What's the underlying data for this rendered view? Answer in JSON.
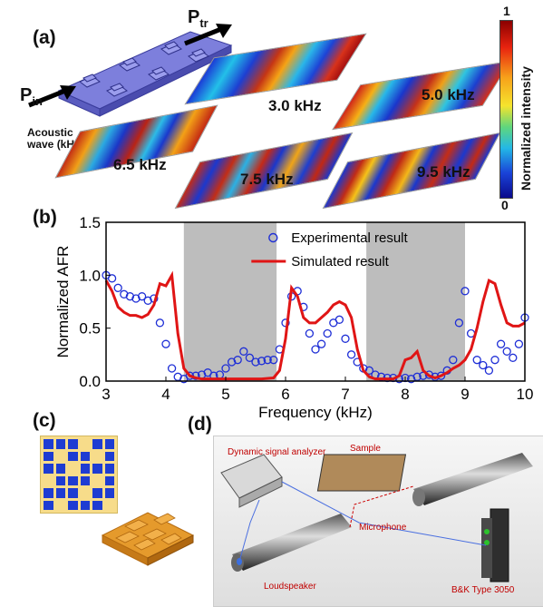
{
  "panels": {
    "a": "(a)",
    "b": "(b)",
    "c": "(c)",
    "d": "(d)"
  },
  "panel_a": {
    "p_in": {
      "main": "P",
      "sub": "in"
    },
    "p_tr": {
      "main": "P",
      "sub": "tr"
    },
    "wave_label_line1": "Acoustic",
    "wave_label_line2": "wave (kHz)",
    "freqs": [
      "3.0 kHz",
      "5.0 kHz",
      "6.5 kHz",
      "7.5 kHz",
      "9.5 kHz"
    ],
    "colorbar": {
      "max": "1",
      "min": "0",
      "label": "Normalized intensity"
    }
  },
  "chart_data": {
    "type": "line",
    "xlabel": "Frequency (kHz)",
    "ylabel": "Normalized AFR",
    "xlim": [
      3,
      10
    ],
    "ylim": [
      0,
      1.5
    ],
    "xticks": [
      "3",
      "4",
      "5",
      "6",
      "7",
      "8",
      "9",
      "10"
    ],
    "yticks": [
      "0.0",
      "0.5",
      "1.0",
      "1.5"
    ],
    "bandgaps": [
      [
        4.3,
        5.85
      ],
      [
        7.35,
        9.0
      ]
    ],
    "legend": [
      "Experimental result",
      "Simulated result"
    ],
    "series": [
      {
        "name": "Experimental result",
        "style": "scatter",
        "color": "#1f2fd6",
        "x": [
          3.0,
          3.1,
          3.2,
          3.3,
          3.4,
          3.5,
          3.6,
          3.7,
          3.8,
          3.9,
          4.0,
          4.1,
          4.2,
          4.3,
          4.4,
          4.5,
          4.6,
          4.7,
          4.8,
          4.9,
          5.0,
          5.1,
          5.2,
          5.3,
          5.4,
          5.5,
          5.6,
          5.7,
          5.8,
          5.9,
          6.0,
          6.1,
          6.2,
          6.3,
          6.4,
          6.5,
          6.6,
          6.7,
          6.8,
          6.9,
          7.0,
          7.1,
          7.2,
          7.3,
          7.4,
          7.5,
          7.6,
          7.7,
          7.8,
          7.9,
          8.0,
          8.1,
          8.2,
          8.3,
          8.4,
          8.5,
          8.6,
          8.7,
          8.8,
          8.9,
          9.0,
          9.1,
          9.2,
          9.3,
          9.4,
          9.5,
          9.6,
          9.7,
          9.8,
          9.9,
          10.0
        ],
        "y": [
          1.0,
          0.97,
          0.88,
          0.82,
          0.8,
          0.78,
          0.8,
          0.76,
          0.78,
          0.55,
          0.35,
          0.12,
          0.04,
          0.02,
          0.05,
          0.05,
          0.06,
          0.08,
          0.05,
          0.06,
          0.12,
          0.18,
          0.2,
          0.28,
          0.22,
          0.18,
          0.19,
          0.2,
          0.2,
          0.3,
          0.55,
          0.8,
          0.85,
          0.7,
          0.45,
          0.3,
          0.35,
          0.45,
          0.55,
          0.58,
          0.4,
          0.25,
          0.18,
          0.12,
          0.1,
          0.06,
          0.04,
          0.03,
          0.03,
          0.02,
          0.03,
          0.02,
          0.04,
          0.05,
          0.06,
          0.04,
          0.05,
          0.1,
          0.2,
          0.55,
          0.85,
          0.45,
          0.2,
          0.15,
          0.1,
          0.2,
          0.35,
          0.28,
          0.22,
          0.35,
          0.6
        ]
      },
      {
        "name": "Simulated result",
        "style": "line",
        "color": "#e01515",
        "x": [
          3.0,
          3.1,
          3.2,
          3.3,
          3.4,
          3.5,
          3.6,
          3.7,
          3.8,
          3.9,
          4.0,
          4.1,
          4.2,
          4.3,
          4.4,
          4.5,
          4.6,
          4.7,
          4.8,
          4.9,
          5.0,
          5.2,
          5.4,
          5.6,
          5.8,
          5.9,
          6.0,
          6.1,
          6.2,
          6.3,
          6.4,
          6.5,
          6.6,
          6.7,
          6.8,
          6.9,
          7.0,
          7.1,
          7.2,
          7.3,
          7.4,
          7.5,
          7.6,
          7.8,
          7.9,
          8.0,
          8.1,
          8.2,
          8.3,
          8.4,
          8.5,
          8.6,
          8.7,
          8.8,
          8.9,
          9.0,
          9.1,
          9.2,
          9.3,
          9.4,
          9.5,
          9.6,
          9.7,
          9.8,
          9.9,
          10.0
        ],
        "y": [
          0.95,
          0.85,
          0.7,
          0.65,
          0.62,
          0.62,
          0.6,
          0.63,
          0.72,
          0.92,
          0.9,
          1.0,
          0.45,
          0.12,
          0.05,
          0.03,
          0.02,
          0.02,
          0.02,
          0.02,
          0.02,
          0.02,
          0.02,
          0.02,
          0.03,
          0.1,
          0.4,
          0.88,
          0.8,
          0.6,
          0.55,
          0.55,
          0.6,
          0.65,
          0.72,
          0.75,
          0.72,
          0.6,
          0.3,
          0.1,
          0.04,
          0.02,
          0.02,
          0.02,
          0.05,
          0.2,
          0.22,
          0.28,
          0.1,
          0.05,
          0.03,
          0.05,
          0.08,
          0.12,
          0.15,
          0.2,
          0.3,
          0.5,
          0.75,
          0.95,
          0.92,
          0.72,
          0.55,
          0.52,
          0.52,
          0.55
        ]
      }
    ]
  },
  "panel_d": {
    "analyzer": "Dynamic signal analyzer",
    "sample": "Sample",
    "microphone": "Microphone",
    "loudspeaker": "Loudspeaker",
    "bk": "B&K Type 3050"
  }
}
